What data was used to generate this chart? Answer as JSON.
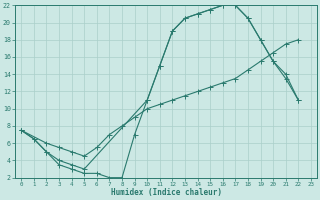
{
  "xlabel": "Humidex (Indice chaleur)",
  "bg_color": "#cce8e4",
  "grid_color": "#aacfca",
  "line_color": "#2a7a6e",
  "xlim": [
    -0.5,
    23.5
  ],
  "ylim": [
    2,
    22
  ],
  "xticks": [
    0,
    1,
    2,
    3,
    4,
    5,
    6,
    7,
    8,
    9,
    10,
    11,
    12,
    13,
    14,
    15,
    16,
    17,
    18,
    19,
    20,
    21,
    22,
    23
  ],
  "yticks": [
    2,
    4,
    6,
    8,
    10,
    12,
    14,
    16,
    18,
    20,
    22
  ],
  "curve1_x": [
    0,
    1,
    2,
    3,
    4,
    5,
    6,
    7,
    8,
    9,
    10,
    11,
    12,
    13,
    14,
    15,
    16,
    17,
    18,
    19,
    20,
    21,
    22
  ],
  "curve1_y": [
    7.5,
    6.5,
    5.0,
    3.5,
    3.0,
    2.5,
    2.5,
    2.0,
    2.0,
    7.0,
    11.0,
    15.0,
    19.0,
    20.5,
    21.0,
    21.5,
    22.0,
    22.0,
    20.5,
    18.0,
    15.5,
    13.5,
    11.0
  ],
  "curve2_x": [
    0,
    1,
    2,
    3,
    4,
    5,
    10,
    11,
    12,
    13,
    14,
    15,
    16,
    17,
    18,
    19,
    20,
    21,
    22
  ],
  "curve2_y": [
    7.5,
    6.5,
    5.0,
    4.0,
    3.5,
    3.0,
    11.0,
    15.0,
    19.0,
    20.5,
    21.0,
    21.5,
    22.0,
    22.0,
    20.5,
    18.0,
    15.5,
    14.0,
    11.0
  ],
  "curve3_x": [
    0,
    2,
    3,
    4,
    5,
    6,
    7,
    8,
    9,
    10,
    11,
    12,
    13,
    14,
    15,
    16,
    17,
    18,
    19,
    20,
    21,
    22
  ],
  "curve3_y": [
    7.5,
    6.0,
    5.5,
    5.0,
    4.5,
    5.5,
    7.0,
    8.0,
    9.0,
    10.0,
    10.5,
    11.0,
    11.5,
    12.0,
    12.5,
    13.0,
    13.5,
    14.5,
    15.5,
    16.5,
    17.5,
    18.0
  ]
}
